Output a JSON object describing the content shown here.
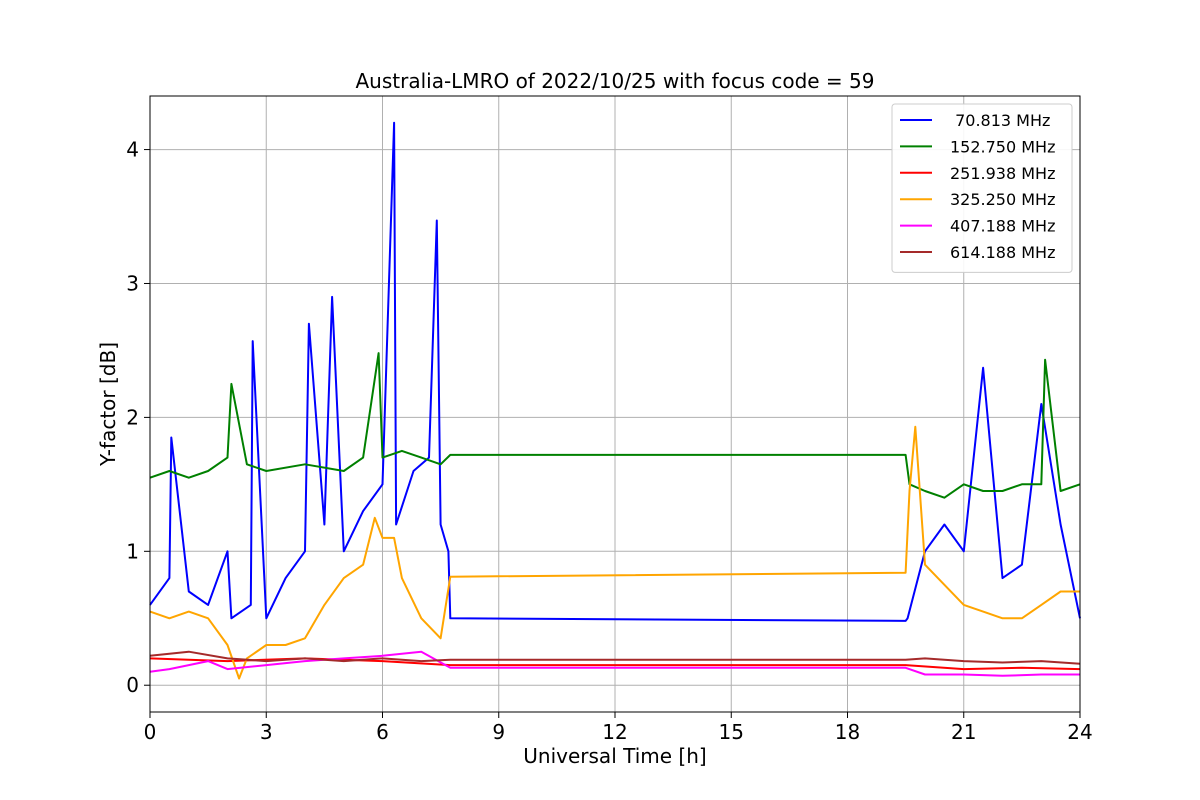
{
  "chart_data": {
    "type": "line",
    "title": "Australia-LMRO of 2022/10/25 with focus code = 59",
    "xlabel": "Universal Time [h]",
    "ylabel": "Y-factor [dB]",
    "xlim": [
      0,
      24
    ],
    "ylim": [
      -0.2,
      4.4
    ],
    "xticks": [
      0,
      3,
      6,
      9,
      12,
      15,
      18,
      21,
      24
    ],
    "yticks": [
      0,
      1,
      2,
      3,
      4
    ],
    "grid": true,
    "legend_position": "top-right",
    "series": [
      {
        "name": " 70.813 MHz",
        "color": "#0000ff",
        "x": [
          0,
          0.5,
          0.55,
          1.0,
          1.5,
          2.0,
          2.1,
          2.6,
          2.65,
          3.0,
          3.5,
          4.0,
          4.1,
          4.5,
          4.7,
          5.0,
          5.5,
          6.0,
          6.3,
          6.35,
          6.8,
          7.2,
          7.4,
          7.5,
          7.7,
          7.75,
          19.5,
          19.55,
          20.0,
          20.5,
          21.0,
          21.5,
          22.0,
          22.5,
          23.0,
          23.5,
          24.0
        ],
        "y": [
          0.6,
          0.8,
          1.85,
          0.7,
          0.6,
          1.0,
          0.5,
          0.6,
          2.57,
          0.5,
          0.8,
          1.0,
          2.7,
          1.2,
          2.9,
          1.0,
          1.3,
          1.5,
          4.2,
          1.2,
          1.6,
          1.7,
          3.47,
          1.2,
          1.0,
          0.5,
          0.48,
          0.5,
          1.0,
          1.2,
          1.0,
          2.37,
          0.8,
          0.9,
          2.1,
          1.2,
          0.5
        ]
      },
      {
        "name": "152.750 MHz",
        "color": "#008000",
        "x": [
          0,
          0.5,
          1.0,
          1.5,
          2.0,
          2.1,
          2.5,
          3.0,
          4.0,
          5.0,
          5.5,
          5.9,
          6.0,
          6.5,
          7.0,
          7.5,
          7.75,
          19.5,
          19.6,
          20.0,
          20.5,
          21.0,
          21.5,
          22.0,
          22.5,
          23.0,
          23.1,
          23.5,
          24.0
        ],
        "y": [
          1.55,
          1.6,
          1.55,
          1.6,
          1.7,
          2.25,
          1.65,
          1.6,
          1.65,
          1.6,
          1.7,
          2.48,
          1.7,
          1.75,
          1.7,
          1.65,
          1.72,
          1.72,
          1.5,
          1.45,
          1.4,
          1.5,
          1.45,
          1.45,
          1.5,
          1.5,
          2.43,
          1.45,
          1.5
        ]
      },
      {
        "name": "251.938 MHz",
        "color": "#ff0000",
        "x": [
          0,
          2.0,
          4.0,
          6.0,
          7.75,
          19.5,
          21.0,
          22.5,
          24.0
        ],
        "y": [
          0.2,
          0.18,
          0.2,
          0.18,
          0.15,
          0.15,
          0.12,
          0.13,
          0.12
        ]
      },
      {
        "name": "325.250 MHz",
        "color": "#ffa500",
        "x": [
          0,
          0.5,
          1.0,
          1.5,
          2.0,
          2.3,
          2.5,
          3.0,
          3.5,
          4.0,
          4.5,
          5.0,
          5.5,
          5.8,
          6.0,
          6.3,
          6.5,
          7.0,
          7.5,
          7.75,
          19.5,
          19.6,
          19.75,
          20.0,
          20.5,
          21.0,
          21.5,
          22.0,
          22.5,
          23.0,
          23.5,
          24.0
        ],
        "y": [
          0.55,
          0.5,
          0.55,
          0.5,
          0.3,
          0.05,
          0.2,
          0.3,
          0.3,
          0.35,
          0.6,
          0.8,
          0.9,
          1.25,
          1.1,
          1.1,
          0.8,
          0.5,
          0.35,
          0.81,
          0.84,
          1.45,
          1.93,
          0.9,
          0.75,
          0.6,
          0.55,
          0.5,
          0.5,
          0.6,
          0.7,
          0.7
        ]
      },
      {
        "name": "407.188 MHz",
        "color": "#ff00ff",
        "x": [
          0,
          0.5,
          1.0,
          1.5,
          2.0,
          3.0,
          4.0,
          5.0,
          6.0,
          7.0,
          7.75,
          19.5,
          20.0,
          21.0,
          22.0,
          23.0,
          24.0
        ],
        "y": [
          0.1,
          0.12,
          0.15,
          0.18,
          0.12,
          0.15,
          0.18,
          0.2,
          0.22,
          0.25,
          0.13,
          0.13,
          0.08,
          0.08,
          0.07,
          0.08,
          0.08
        ]
      },
      {
        "name": "614.188 MHz",
        "color": "#a52a2a",
        "x": [
          0,
          1.0,
          2.0,
          3.0,
          4.0,
          5.0,
          6.0,
          7.0,
          7.75,
          19.5,
          20.0,
          21.0,
          22.0,
          23.0,
          24.0
        ],
        "y": [
          0.22,
          0.25,
          0.2,
          0.18,
          0.2,
          0.18,
          0.2,
          0.18,
          0.19,
          0.19,
          0.2,
          0.18,
          0.17,
          0.18,
          0.16
        ]
      }
    ]
  }
}
